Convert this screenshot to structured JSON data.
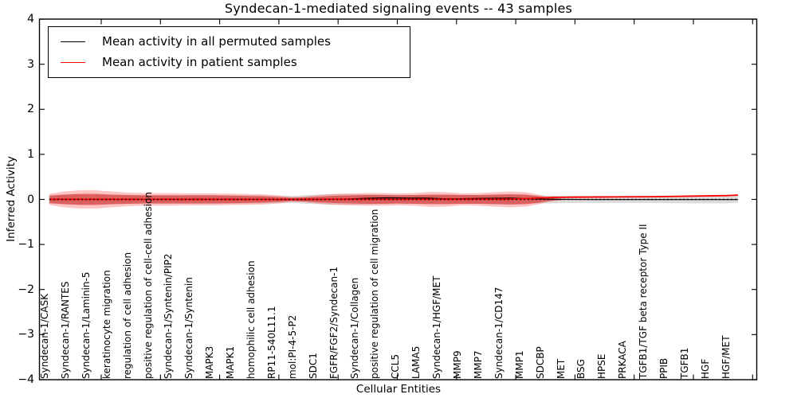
{
  "chart_data": {
    "type": "area",
    "subtype": "violin-band-with-mean-lines",
    "title": "Syndecan-1-mediated signaling events -- 43 samples",
    "xlabel": "Cellular Entities",
    "ylabel": "Inferred Activity",
    "ylim": [
      -4,
      4
    ],
    "ytick_labels": [
      "4",
      "3",
      "2",
      "1",
      "0",
      "−1",
      "−2",
      "−3",
      "−4"
    ],
    "ytick_values": [
      4,
      3,
      2,
      1,
      0,
      -1,
      -2,
      -3,
      -4
    ],
    "grid": false,
    "legend_position": "upper left",
    "legend": [
      {
        "label": "Mean activity in all permuted samples",
        "color": "#000000"
      },
      {
        "label": "Mean activity in patient samples",
        "color": "#ff0000"
      }
    ],
    "categories": [
      "Syndecan-1/CASK",
      "Syndecan-1/RANTES",
      "Syndecan-1/Laminin-5",
      "keratinocyte migration",
      "regulation of cell adhesion",
      "positive regulation of cell-cell adhesion",
      "Syndecan-1/Syntenin/PIP2",
      "Syndecan-1/Syntenin",
      "MAPK3",
      "MAPK1",
      "homophilic cell adhesion",
      "RP11-540L11.1",
      "mol:PI-4-5-P2",
      "SDC1",
      "FGFR/FGF2/Syndecan-1",
      "Syndecan-1/Collagen",
      "positive regulation of cell migration",
      "CCL5",
      "LAMA5",
      "Syndecan-1/HGF/MET",
      "MMP9",
      "MMP7",
      "Syndecan-1/CD147",
      "MMP1",
      "SDCBP",
      "MET",
      "BSG",
      "HPSE",
      "PRKACA",
      "TGFB1/TGF beta receptor Type II",
      "PPIB",
      "TGFB1",
      "HGF",
      "HGF/MET"
    ],
    "zero_line": {
      "style": "dotted",
      "color": "#000000",
      "y": 0
    },
    "bands": [
      {
        "name": "permuted-std-band",
        "color": "rgba(130,130,130,0.28)",
        "half_width": [
          [
            -0.35,
            0.097
          ],
          [
            0.4,
            0.106
          ],
          [
            1.2,
            0.106
          ],
          [
            3.5,
            0.097
          ],
          [
            8.9,
            0.097
          ],
          [
            10.0,
            0.088
          ],
          [
            11.4,
            0.08
          ],
          [
            12.7,
            0.106
          ],
          [
            13.5,
            0.115
          ],
          [
            15.1,
            0.115
          ],
          [
            15.8,
            0.106
          ],
          [
            17.4,
            0.097
          ],
          [
            22.0,
            0.097
          ],
          [
            23.4,
            0.088
          ],
          [
            24.0,
            0.088
          ],
          [
            24.9,
            0.08
          ],
          [
            28.2,
            0.08
          ],
          [
            31.3,
            0.088
          ],
          [
            32.2,
            0.088
          ],
          [
            33.05,
            0.08
          ]
        ]
      },
      {
        "name": "patient-band-outer",
        "color": "rgba(255,60,60,0.30)",
        "half_width": [
          [
            -0.3,
            0.124
          ],
          [
            0.4,
            0.177
          ],
          [
            1.2,
            0.203
          ],
          [
            1.9,
            0.203
          ],
          [
            2.7,
            0.177
          ],
          [
            3.5,
            0.15
          ],
          [
            4.2,
            0.141
          ],
          [
            5.4,
            0.141
          ],
          [
            6.6,
            0.133
          ],
          [
            7.7,
            0.133
          ],
          [
            8.9,
            0.124
          ],
          [
            10.0,
            0.115
          ],
          [
            10.8,
            0.088
          ],
          [
            11.4,
            0.053
          ],
          [
            12.0,
            0.062
          ],
          [
            12.7,
            0.097
          ],
          [
            13.5,
            0.124
          ],
          [
            14.3,
            0.133
          ],
          [
            15.1,
            0.141
          ],
          [
            15.8,
            0.141
          ],
          [
            16.6,
            0.133
          ],
          [
            17.4,
            0.141
          ],
          [
            18.2,
            0.168
          ],
          [
            18.9,
            0.159
          ],
          [
            19.7,
            0.133
          ],
          [
            20.5,
            0.141
          ],
          [
            21.2,
            0.159
          ],
          [
            22.0,
            0.177
          ],
          [
            22.8,
            0.159
          ],
          [
            23.4,
            0.106
          ],
          [
            23.9,
            0.053
          ],
          [
            24.3,
            0.027
          ],
          [
            24.8,
            0.005
          ]
        ]
      },
      {
        "name": "patient-band-inner",
        "color": "rgba(205,20,20,0.50)",
        "half_width": [
          [
            -0.3,
            0.08
          ],
          [
            0.4,
            0.106
          ],
          [
            1.2,
            0.124
          ],
          [
            1.9,
            0.124
          ],
          [
            2.7,
            0.106
          ],
          [
            3.5,
            0.097
          ],
          [
            4.2,
            0.088
          ],
          [
            5.4,
            0.088
          ],
          [
            6.6,
            0.088
          ],
          [
            7.7,
            0.088
          ],
          [
            8.9,
            0.08
          ],
          [
            10.0,
            0.071
          ],
          [
            10.8,
            0.053
          ],
          [
            11.4,
            0.035
          ],
          [
            12.0,
            0.044
          ],
          [
            12.7,
            0.062
          ],
          [
            13.5,
            0.08
          ],
          [
            14.3,
            0.088
          ],
          [
            15.1,
            0.097
          ],
          [
            15.8,
            0.097
          ],
          [
            16.6,
            0.088
          ],
          [
            17.4,
            0.097
          ],
          [
            18.2,
            0.106
          ],
          [
            18.9,
            0.106
          ],
          [
            19.7,
            0.097
          ],
          [
            20.5,
            0.097
          ],
          [
            21.2,
            0.106
          ],
          [
            22.0,
            0.115
          ],
          [
            22.8,
            0.106
          ],
          [
            23.4,
            0.071
          ],
          [
            23.9,
            0.035
          ],
          [
            24.3,
            0.018
          ],
          [
            24.8,
            0.004
          ]
        ]
      }
    ],
    "series": [
      {
        "name": "Mean activity in all permuted samples",
        "color": "#000000",
        "width": 1.2,
        "points": [
          [
            -0.3,
            0.0
          ],
          [
            10.0,
            0.0
          ],
          [
            12.0,
            -0.005
          ],
          [
            14.0,
            0.005
          ],
          [
            15.0,
            0.025
          ],
          [
            16.0,
            0.035
          ],
          [
            17.0,
            0.03
          ],
          [
            18.0,
            0.028
          ],
          [
            19.0,
            0.012
          ],
          [
            20.0,
            0.018
          ],
          [
            21.0,
            0.025
          ],
          [
            22.0,
            0.028
          ],
          [
            23.0,
            0.012
          ],
          [
            24.0,
            0.002
          ],
          [
            26.0,
            -0.003
          ],
          [
            30.0,
            -0.003
          ],
          [
            33.05,
            -0.003
          ]
        ]
      },
      {
        "name": "Mean activity in patient samples",
        "color": "#ff0000",
        "width": 1.8,
        "points": [
          [
            -0.3,
            0.002
          ],
          [
            5.0,
            0.002
          ],
          [
            10.0,
            0.0
          ],
          [
            14.0,
            0.004
          ],
          [
            18.0,
            0.004
          ],
          [
            22.0,
            0.006
          ],
          [
            23.0,
            0.02
          ],
          [
            24.0,
            0.045
          ],
          [
            25.0,
            0.05
          ],
          [
            27.0,
            0.055
          ],
          [
            29.0,
            0.06
          ],
          [
            31.0,
            0.075
          ],
          [
            32.5,
            0.085
          ],
          [
            33.05,
            0.095
          ]
        ]
      }
    ]
  },
  "colors": {
    "background": "#ffffff",
    "frame": "#000000"
  }
}
